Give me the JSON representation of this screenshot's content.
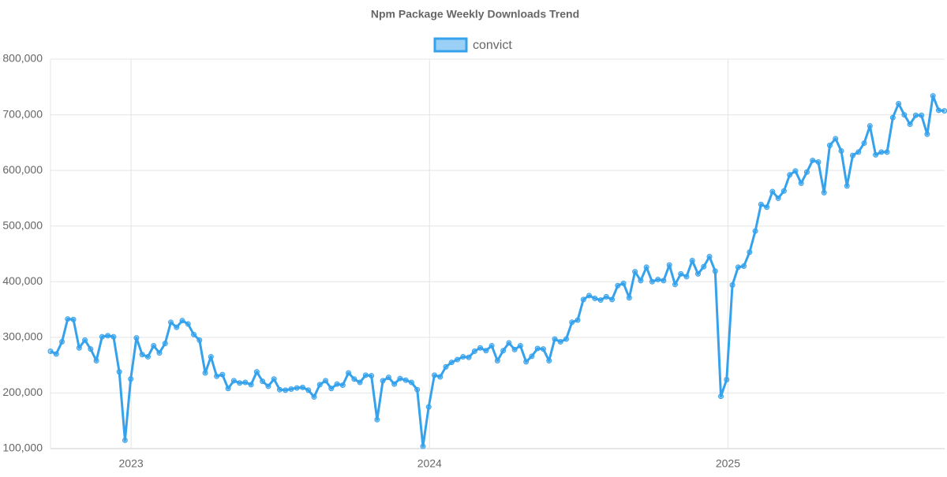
{
  "chart_data": {
    "type": "line",
    "title": "Npm Package Weekly Downloads Trend",
    "x": [
      2022.73,
      2022.7492,
      2022.7684,
      2022.7876,
      2022.8068,
      2022.826,
      2022.8452,
      2022.8644,
      2022.8836,
      2022.9028,
      2022.922,
      2022.9412,
      2022.9604,
      2022.9796,
      2022.9988,
      2023.018,
      2023.0372,
      2023.0564,
      2023.0756,
      2023.0948,
      2023.114,
      2023.1332,
      2023.1524,
      2023.1716,
      2023.1908,
      2023.21,
      2023.2292,
      2023.2484,
      2023.2676,
      2023.2868,
      2023.306,
      2023.3252,
      2023.3444,
      2023.3636,
      2023.3828,
      2023.402,
      2023.4212,
      2023.4404,
      2023.4596,
      2023.4788,
      2023.498,
      2023.5172,
      2023.5364,
      2023.5556,
      2023.5748,
      2023.594,
      2023.6132,
      2023.6324,
      2023.6516,
      2023.6708,
      2023.69,
      2023.7092,
      2023.7284,
      2023.7476,
      2023.7668,
      2023.786,
      2023.8052,
      2023.8244,
      2023.8436,
      2023.8628,
      2023.882,
      2023.9012,
      2023.9204,
      2023.9396,
      2023.9588,
      2023.978,
      2023.9972,
      2024.0164,
      2024.0356,
      2024.0548,
      2024.074,
      2024.0932,
      2024.1124,
      2024.1316,
      2024.1508,
      2024.17,
      2024.1892,
      2024.2084,
      2024.2276,
      2024.2468,
      2024.266,
      2024.2852,
      2024.3044,
      2024.3236,
      2024.3428,
      2024.362,
      2024.3812,
      2024.4004,
      2024.4196,
      2024.4388,
      2024.458,
      2024.4772,
      2024.4964,
      2024.5156,
      2024.5348,
      2024.554,
      2024.5732,
      2024.5924,
      2024.6116,
      2024.6308,
      2024.65,
      2024.6692,
      2024.6884,
      2024.7076,
      2024.7268,
      2024.746,
      2024.7652,
      2024.7844,
      2024.8036,
      2024.8228,
      2024.842,
      2024.8612,
      2024.8804,
      2024.8996,
      2024.9188,
      2024.938,
      2024.9572,
      2024.9764,
      2024.9956,
      2025.0148,
      2025.034,
      2025.0532,
      2025.0724,
      2025.0916,
      2025.1108,
      2025.13,
      2025.1492,
      2025.1684,
      2025.1876,
      2025.2068,
      2025.226,
      2025.2452,
      2025.2644,
      2025.2836,
      2025.3028,
      2025.322,
      2025.3412,
      2025.3604,
      2025.3796,
      2025.3988,
      2025.418,
      2025.4372,
      2025.4564,
      2025.4756,
      2025.4948,
      2025.514,
      2025.5332,
      2025.5524,
      2025.5716,
      2025.5908,
      2025.61,
      2025.6292,
      2025.6484,
      2025.6676,
      2025.6868,
      2025.706,
      2025.7252
    ],
    "series": [
      {
        "name": "convict",
        "color": "#36a2eb",
        "values": [
          275000,
          270000,
          292000,
          333000,
          332000,
          281000,
          295000,
          279000,
          258000,
          301000,
          303000,
          301000,
          238000,
          115000,
          225000,
          299000,
          269000,
          265000,
          285000,
          272000,
          289000,
          327000,
          318000,
          330000,
          324000,
          305000,
          295000,
          236000,
          265000,
          230000,
          233000,
          208000,
          222000,
          218000,
          219000,
          215000,
          238000,
          221000,
          212000,
          225000,
          206000,
          205000,
          207000,
          209000,
          210000,
          205000,
          193000,
          215000,
          222000,
          208000,
          216000,
          214000,
          236000,
          225000,
          219000,
          232000,
          231000,
          152000,
          222000,
          228000,
          216000,
          226000,
          223000,
          219000,
          206000,
          104000,
          175000,
          232000,
          229000,
          247000,
          255000,
          260000,
          265000,
          264000,
          275000,
          281000,
          276000,
          285000,
          258000,
          276000,
          290000,
          278000,
          285000,
          256000,
          266000,
          280000,
          279000,
          258000,
          297000,
          292000,
          297000,
          327000,
          331000,
          368000,
          375000,
          370000,
          367000,
          373000,
          368000,
          393000,
          397000,
          371000,
          418000,
          402000,
          426000,
          400000,
          404000,
          402000,
          430000,
          395000,
          414000,
          409000,
          438000,
          414000,
          427000,
          445000,
          419000,
          194000,
          224000,
          394000,
          426000,
          428000,
          453000,
          491000,
          539000,
          534000,
          562000,
          550000,
          563000,
          592000,
          599000,
          577000,
          597000,
          618000,
          615000,
          560000,
          645000,
          657000,
          635000,
          572000,
          627000,
          633000,
          649000,
          680000,
          628000,
          633000,
          633000,
          695000,
          720000,
          700000,
          683000,
          699000,
          699000,
          665000,
          734000,
          708000,
          707000
        ]
      }
    ],
    "xlim": [
      2022.73,
      2025.726
    ],
    "xticks": [
      2023,
      2024,
      2025
    ],
    "ylim": [
      100000,
      800000
    ],
    "yticks": [
      {
        "value": 100000,
        "label": "100,000"
      },
      {
        "value": 200000,
        "label": "200,000"
      },
      {
        "value": 300000,
        "label": "300,000"
      },
      {
        "value": 400000,
        "label": "400,000"
      },
      {
        "value": 500000,
        "label": "500,000"
      },
      {
        "value": 600000,
        "label": "600,000"
      },
      {
        "value": 700000,
        "label": "700,000"
      },
      {
        "value": 800000,
        "label": "800,000"
      }
    ],
    "grid": true,
    "legend": "top"
  }
}
